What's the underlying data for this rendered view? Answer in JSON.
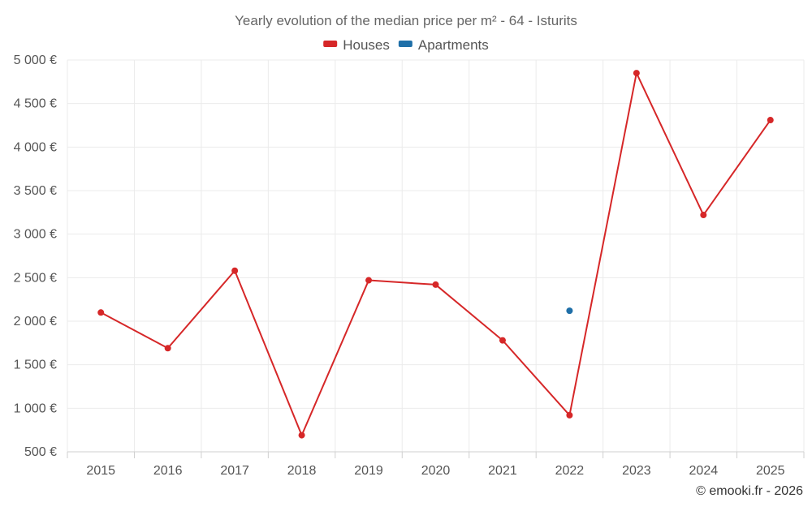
{
  "colors": {
    "houses": "#d62728",
    "apartments": "#1f6fa8"
  },
  "chart_data": {
    "type": "line",
    "title": "Yearly evolution of the median price per m² - 64 - Isturits",
    "xlabel": "",
    "ylabel": "",
    "x": [
      "2015",
      "2016",
      "2017",
      "2018",
      "2019",
      "2020",
      "2021",
      "2022",
      "2023",
      "2024",
      "2025"
    ],
    "y_ticks": [
      500,
      1000,
      1500,
      2000,
      2500,
      3000,
      3500,
      4000,
      4500,
      5000
    ],
    "y_tick_labels": [
      "500 €",
      "1 000 €",
      "1 500 €",
      "2 000 €",
      "2 500 €",
      "3 000 €",
      "3 500 €",
      "4 000 €",
      "4 500 €",
      "5 000 €"
    ],
    "ylim": [
      500,
      5000
    ],
    "grid": true,
    "legend_position": "top-center",
    "series": [
      {
        "name": "Houses",
        "color_key": "houses",
        "values": [
          2100,
          1690,
          2580,
          690,
          2470,
          2420,
          1780,
          920,
          4850,
          3220,
          4310
        ]
      },
      {
        "name": "Apartments",
        "color_key": "apartments",
        "values": [
          null,
          null,
          null,
          null,
          null,
          null,
          null,
          2120,
          null,
          null,
          null
        ]
      }
    ]
  },
  "credit": "© emooki.fr - 2026"
}
